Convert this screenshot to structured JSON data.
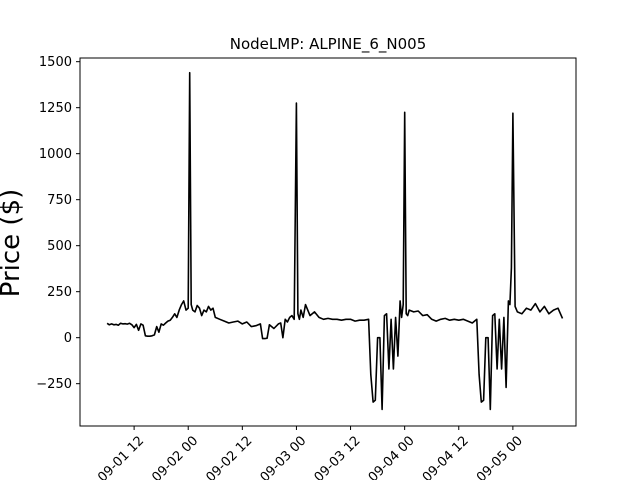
{
  "chart_data": {
    "type": "line",
    "title": "NodeLMP: ALPINE_6_N005",
    "ylabel": "Price ($)",
    "xlabel": "",
    "grid": false,
    "legend": false,
    "line_color": "#000000",
    "xlim": [
      "2022-09-01 00:00",
      "2022-09-05 14:00"
    ],
    "ylim": [
      -480,
      1520
    ],
    "x_ticks": [
      {
        "value": "2022-09-01 12:00",
        "label": "09-01 12"
      },
      {
        "value": "2022-09-02 00:00",
        "label": "09-02 00"
      },
      {
        "value": "2022-09-02 12:00",
        "label": "09-02 12"
      },
      {
        "value": "2022-09-03 00:00",
        "label": "09-03 00"
      },
      {
        "value": "2022-09-03 12:00",
        "label": "09-03 12"
      },
      {
        "value": "2022-09-04 00:00",
        "label": "09-04 00"
      },
      {
        "value": "2022-09-04 12:00",
        "label": "09-04 12"
      },
      {
        "value": "2022-09-05 00:00",
        "label": "09-05 00"
      }
    ],
    "y_ticks": [
      {
        "value": -250,
        "label": "−250"
      },
      {
        "value": 0,
        "label": "0"
      },
      {
        "value": 250,
        "label": "250"
      },
      {
        "value": 500,
        "label": "500"
      },
      {
        "value": 750,
        "label": "750"
      },
      {
        "value": 1000,
        "label": "1000"
      },
      {
        "value": 1250,
        "label": "1250"
      },
      {
        "value": 1500,
        "label": "1500"
      }
    ],
    "series": [
      {
        "x": [
          "2022-09-01 06:00",
          "2022-09-01 06:30",
          "2022-09-01 07:00",
          "2022-09-01 07:30",
          "2022-09-01 08:00",
          "2022-09-01 08:30",
          "2022-09-01 09:00",
          "2022-09-01 09:30",
          "2022-09-01 10:00",
          "2022-09-01 10:30",
          "2022-09-01 11:00",
          "2022-09-01 11:30",
          "2022-09-01 12:00",
          "2022-09-01 12:30",
          "2022-09-01 13:00",
          "2022-09-01 13:30",
          "2022-09-01 14:00",
          "2022-09-01 14:30",
          "2022-09-01 15:00",
          "2022-09-01 15:30",
          "2022-09-01 16:00",
          "2022-09-01 16:30",
          "2022-09-01 17:00",
          "2022-09-01 17:30",
          "2022-09-01 18:00",
          "2022-09-01 18:30",
          "2022-09-01 19:00",
          "2022-09-01 19:30",
          "2022-09-01 20:00",
          "2022-09-01 20:30",
          "2022-09-01 21:00",
          "2022-09-01 21:30",
          "2022-09-01 22:00",
          "2022-09-01 22:30",
          "2022-09-01 23:00",
          "2022-09-01 23:30",
          "2022-09-02 00:00",
          "2022-09-02 00:20",
          "2022-09-02 00:40",
          "2022-09-02 01:00",
          "2022-09-02 01:30",
          "2022-09-02 02:00",
          "2022-09-02 02:30",
          "2022-09-02 03:00",
          "2022-09-02 03:30",
          "2022-09-02 04:00",
          "2022-09-02 04:30",
          "2022-09-02 05:00",
          "2022-09-02 05:30",
          "2022-09-02 06:00",
          "2022-09-02 07:00",
          "2022-09-02 08:00",
          "2022-09-02 09:00",
          "2022-09-02 10:00",
          "2022-09-02 11:00",
          "2022-09-02 12:00",
          "2022-09-02 13:00",
          "2022-09-02 14:00",
          "2022-09-02 15:00",
          "2022-09-02 16:00",
          "2022-09-02 16:30",
          "2022-09-02 17:00",
          "2022-09-02 17:30",
          "2022-09-02 18:00",
          "2022-09-02 19:00",
          "2022-09-02 20:00",
          "2022-09-02 20:30",
          "2022-09-02 21:00",
          "2022-09-02 21:30",
          "2022-09-02 22:00",
          "2022-09-02 22:30",
          "2022-09-02 23:00",
          "2022-09-02 23:30",
          "2022-09-03 00:00",
          "2022-09-03 00:20",
          "2022-09-03 00:40",
          "2022-09-03 01:00",
          "2022-09-03 01:30",
          "2022-09-03 02:00",
          "2022-09-03 03:00",
          "2022-09-03 04:00",
          "2022-09-03 05:00",
          "2022-09-03 06:00",
          "2022-09-03 07:00",
          "2022-09-03 08:00",
          "2022-09-03 09:00",
          "2022-09-03 10:00",
          "2022-09-03 11:00",
          "2022-09-03 12:00",
          "2022-09-03 13:00",
          "2022-09-03 14:00",
          "2022-09-03 15:00",
          "2022-09-03 16:00",
          "2022-09-03 16:30",
          "2022-09-03 17:00",
          "2022-09-03 17:30",
          "2022-09-03 18:00",
          "2022-09-03 18:30",
          "2022-09-03 19:00",
          "2022-09-03 19:30",
          "2022-09-03 20:00",
          "2022-09-03 20:30",
          "2022-09-03 21:00",
          "2022-09-03 21:30",
          "2022-09-03 22:00",
          "2022-09-03 22:30",
          "2022-09-03 23:00",
          "2022-09-03 23:20",
          "2022-09-03 23:40",
          "2022-09-04 00:00",
          "2022-09-04 00:20",
          "2022-09-04 00:40",
          "2022-09-04 01:00",
          "2022-09-04 02:00",
          "2022-09-04 03:00",
          "2022-09-04 04:00",
          "2022-09-04 05:00",
          "2022-09-04 06:00",
          "2022-09-04 07:00",
          "2022-09-04 08:00",
          "2022-09-04 09:00",
          "2022-09-04 10:00",
          "2022-09-04 11:00",
          "2022-09-04 12:00",
          "2022-09-04 13:00",
          "2022-09-04 14:00",
          "2022-09-04 15:00",
          "2022-09-04 16:00",
          "2022-09-04 16:30",
          "2022-09-04 17:00",
          "2022-09-04 17:30",
          "2022-09-04 18:00",
          "2022-09-04 18:30",
          "2022-09-04 19:00",
          "2022-09-04 19:30",
          "2022-09-04 20:00",
          "2022-09-04 20:30",
          "2022-09-04 21:00",
          "2022-09-04 21:30",
          "2022-09-04 22:00",
          "2022-09-04 22:30",
          "2022-09-04 23:00",
          "2022-09-04 23:20",
          "2022-09-04 23:40",
          "2022-09-05 00:00",
          "2022-09-05 00:30",
          "2022-09-05 01:00",
          "2022-09-05 02:00",
          "2022-09-05 03:00",
          "2022-09-05 04:00",
          "2022-09-05 05:00",
          "2022-09-05 06:00",
          "2022-09-05 07:00",
          "2022-09-05 08:00",
          "2022-09-05 09:00",
          "2022-09-05 10:00",
          "2022-09-05 11:00"
        ],
        "y": [
          78,
          70,
          75,
          70,
          72,
          68,
          78,
          75,
          76,
          74,
          78,
          70,
          55,
          72,
          40,
          75,
          68,
          10,
          8,
          8,
          10,
          15,
          60,
          30,
          75,
          68,
          80,
          90,
          95,
          110,
          130,
          110,
          150,
          180,
          200,
          150,
          160,
          1440,
          180,
          150,
          140,
          175,
          160,
          120,
          150,
          140,
          170,
          150,
          160,
          110,
          100,
          90,
          80,
          85,
          90,
          75,
          85,
          60,
          65,
          75,
          -5,
          -5,
          -3,
          70,
          50,
          75,
          80,
          0,
          100,
          85,
          110,
          120,
          100,
          1275,
          130,
          100,
          150,
          110,
          180,
          120,
          140,
          110,
          100,
          105,
          100,
          100,
          95,
          100,
          100,
          90,
          95,
          95,
          100,
          -200,
          -350,
          -340,
          0,
          0,
          -390,
          120,
          130,
          -170,
          100,
          -170,
          110,
          -100,
          200,
          110,
          180,
          1225,
          130,
          120,
          150,
          140,
          145,
          120,
          125,
          100,
          90,
          100,
          105,
          95,
          100,
          95,
          100,
          90,
          80,
          100,
          -200,
          -350,
          -340,
          0,
          0,
          -390,
          120,
          130,
          -170,
          100,
          -170,
          110,
          -270,
          200,
          180,
          380,
          1220,
          170,
          140,
          130,
          160,
          150,
          185,
          140,
          170,
          130,
          150,
          160,
          105
        ]
      }
    ]
  }
}
